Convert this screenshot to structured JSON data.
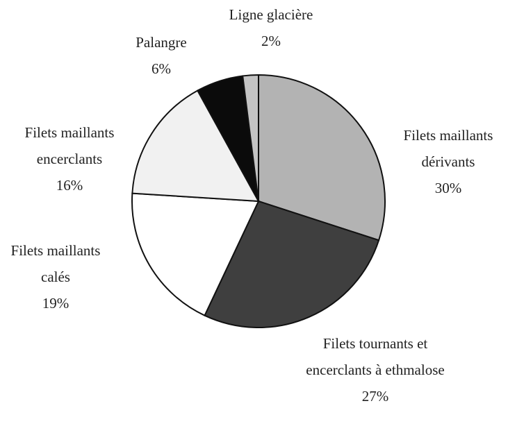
{
  "chart_data": {
    "type": "pie",
    "categories": [
      "Filets maillants dérivants",
      "Filets tournants et encerclants à ethmalose",
      "Filets maillants calés",
      "Filets maillants encerclants",
      "Palangre",
      "Ligne glacière"
    ],
    "values": [
      30,
      27,
      19,
      16,
      6,
      2
    ],
    "value_labels": [
      "30%",
      "27%",
      "19%",
      "16%",
      "6%",
      "2%"
    ],
    "colors": [
      "#b3b3b3",
      "#3f3f3f",
      "#ffffff",
      "#f1f1f1",
      "#0b0b0b",
      "#c4c4c4"
    ]
  }
}
